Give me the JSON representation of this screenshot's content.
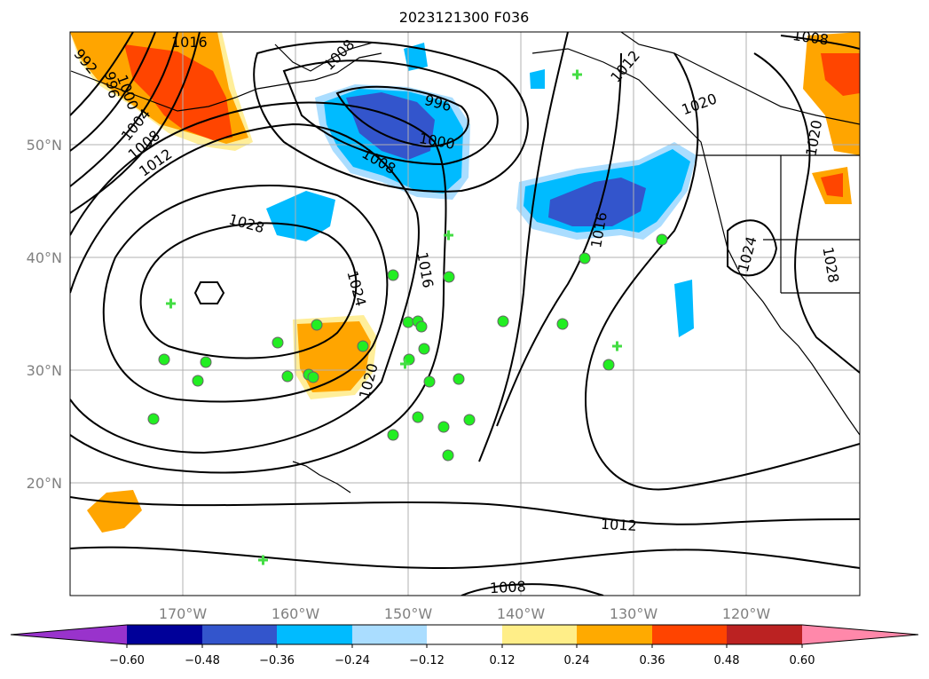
{
  "title": "2023121300 F036",
  "lon_labels": [
    "170°W",
    "160°W",
    "150°W",
    "140°W",
    "130°W",
    "120°W"
  ],
  "lat_labels": [
    "50°N",
    "40°N",
    "30°N",
    "20°N"
  ],
  "contour_labels": [
    "1016",
    "992",
    "996",
    "1000",
    "1004",
    "1008",
    "1012",
    "1028",
    "996",
    "1000",
    "1008",
    "1016",
    "1024",
    "1016",
    "1020",
    "1012",
    "1008",
    "1012",
    "1008",
    "1020",
    "1024",
    "1020",
    "1028",
    "1008"
  ],
  "colorbar": {
    "ticks": [
      "−0.60",
      "−0.48",
      "−0.36",
      "−0.24",
      "−0.12",
      "0.12",
      "0.24",
      "0.36",
      "0.48",
      "0.60"
    ],
    "colors": [
      "#9933cc",
      "#000099",
      "#3355cc",
      "#00bbff",
      "#aaddff",
      "#ffffff",
      "#ffee88",
      "#ffaa00",
      "#ff4400",
      "#bb2222",
      "#ff88aa"
    ]
  },
  "shading_colors": {
    "yellow": "#ffee99",
    "orange": "#ffa500",
    "red": "#ff4500",
    "lightblue": "#aaddff",
    "blue": "#00bbff",
    "darkblue": "#3355cc"
  },
  "station_markers": {
    "circle_color": "#22ee22",
    "plus_color": "#44dd44"
  }
}
